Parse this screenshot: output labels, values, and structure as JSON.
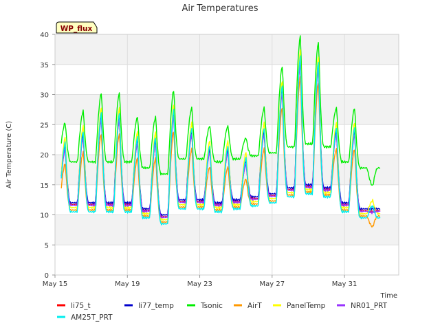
{
  "chart_data": {
    "type": "line",
    "title": "Air Temperatures",
    "xlabel": "Time",
    "ylabel": "Air Temperature (C)",
    "badge": "WP_flux",
    "xlim": [
      0,
      19
    ],
    "ylim": [
      0,
      40
    ],
    "yticks": [
      0,
      5,
      10,
      15,
      20,
      25,
      30,
      35,
      40
    ],
    "xticks": [
      {
        "pos": 0,
        "label": "May 15"
      },
      {
        "pos": 4,
        "label": "May 19"
      },
      {
        "pos": 8,
        "label": "May 23"
      },
      {
        "pos": 12,
        "label": "May 27"
      },
      {
        "pos": 16,
        "label": "May 31"
      }
    ],
    "x_unit": "days since May 15 00:00",
    "days": [
      "May 15",
      "May 16",
      "May 17",
      "May 18",
      "May 19",
      "May 20",
      "May 21",
      "May 22",
      "May 23",
      "May 24",
      "May 25",
      "May 26",
      "May 27",
      "May 28",
      "May 29",
      "May 30",
      "May 31",
      "Jun 1"
    ],
    "grid": true,
    "grid_bands": "alternating light gray",
    "legend_position": "bottom",
    "reference_series": "li77_temp",
    "reference_daily_max": [
      21.5,
      23.5,
      26.5,
      26.5,
      22.5,
      22.5,
      27.0,
      24.0,
      21.0,
      21.0,
      19.0,
      24.0,
      31.0,
      36.0,
      35.0,
      24.0,
      24.0,
      11.0
    ],
    "reference_daily_min": [
      12.5,
      12.0,
      12.0,
      12.0,
      12.0,
      11.0,
      10.0,
      12.5,
      12.5,
      12.0,
      12.5,
      13.0,
      13.5,
      14.5,
      15.0,
      14.5,
      12.0,
      11.0
    ],
    "series": [
      {
        "name": "li75_t",
        "color": "#ff0000",
        "max_offset": -0.5,
        "min_offset": -0.3
      },
      {
        "name": "li77_temp",
        "color": "#0000cc",
        "max_offset": 0.0,
        "min_offset": 0.0
      },
      {
        "name": "Tsonic",
        "color": "#00ee00",
        "max_offset": 3.8,
        "min_offset": 6.8
      },
      {
        "name": "AirT",
        "color": "#ff9900",
        "max_offset": -3.0,
        "min_offset": -1.2
      },
      {
        "name": "PanelTemp",
        "color": "#ffff00",
        "max_offset": 1.4,
        "min_offset": -0.8
      },
      {
        "name": "NR01_PRT",
        "color": "#9933ff",
        "max_offset": -0.6,
        "min_offset": -0.4
      },
      {
        "name": "AM25T_PRT",
        "color": "#00eeee",
        "max_offset": 0.5,
        "min_offset": -1.5
      }
    ]
  }
}
